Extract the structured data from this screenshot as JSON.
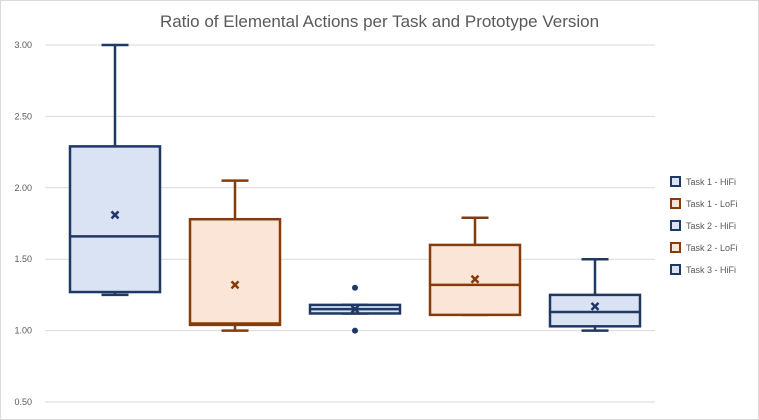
{
  "chart_data": {
    "type": "box",
    "title": "Ratio of Elemental Actions per Task and Prototype Version",
    "xlabel": "",
    "ylabel": "",
    "ylim": [
      0.5,
      3.0
    ],
    "yticks": [
      "0.50",
      "1.00",
      "1.50",
      "2.00",
      "2.50",
      "3.00"
    ],
    "grid": true,
    "legend_position": "right",
    "series": [
      {
        "name": "Task 1 - HiFi",
        "min": 1.25,
        "q1": 1.27,
        "median": 1.66,
        "q3": 2.29,
        "max": 3.0,
        "mean": 1.81,
        "outliers": [],
        "stroke": "#203864",
        "fill": "#dae3f3"
      },
      {
        "name": "Task 1 - LoFi",
        "min": 1.0,
        "q1": 1.04,
        "median": 1.05,
        "q3": 1.78,
        "max": 2.05,
        "mean": 1.32,
        "outliers": [],
        "stroke": "#843c0c",
        "fill": "#fbe5d6"
      },
      {
        "name": "Task 2 - HiFi",
        "min": 1.12,
        "q1": 1.12,
        "median": 1.15,
        "q3": 1.18,
        "max": 1.18,
        "mean": 1.15,
        "outliers": [
          1.3,
          1.0
        ],
        "stroke": "#203864",
        "fill": "#dae3f3"
      },
      {
        "name": "Task 2 - LoFi",
        "min": 1.11,
        "q1": 1.11,
        "median": 1.32,
        "q3": 1.6,
        "max": 1.79,
        "mean": 1.36,
        "outliers": [],
        "stroke": "#843c0c",
        "fill": "#fbe5d6"
      },
      {
        "name": "Task 3 - HiFi",
        "min": 1.0,
        "q1": 1.03,
        "median": 1.13,
        "q3": 1.25,
        "max": 1.5,
        "mean": 1.17,
        "outliers": [],
        "stroke": "#203864",
        "fill": "#dae3f3"
      }
    ]
  }
}
